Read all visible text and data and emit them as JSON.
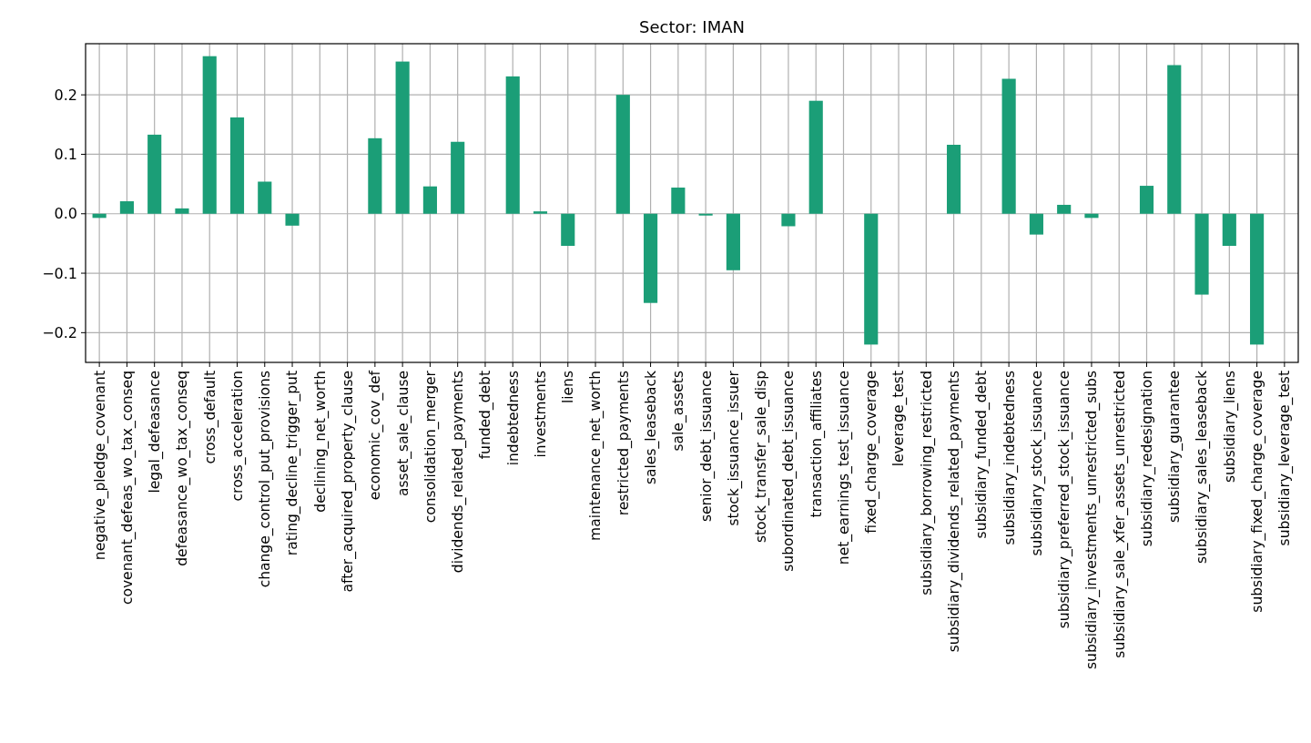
{
  "chart_data": {
    "type": "bar",
    "title": "Sector: IMAN",
    "categories": [
      "negative_pledge_covenant",
      "covenant_defeas_wo_tax_conseq",
      "legal_defeasance",
      "defeasance_wo_tax_conseq",
      "cross_default",
      "cross_acceleration",
      "change_control_put_provisions",
      "rating_decline_trigger_put",
      "declining_net_worth",
      "after_acquired_property_clause",
      "economic_cov_def",
      "asset_sale_clause",
      "consolidation_merger",
      "dividends_related_payments",
      "funded_debt",
      "indebtedness",
      "investments",
      "liens",
      "maintenance_net_worth",
      "restricted_payments",
      "sales_leaseback",
      "sale_assets",
      "senior_debt_issuance",
      "stock_issuance_issuer",
      "stock_transfer_sale_disp",
      "subordinated_debt_issuance",
      "transaction_affiliates",
      "net_earnings_test_issuance",
      "fixed_charge_coverage",
      "leverage_test",
      "subsidiary_borrowing_restricted",
      "subsidiary_dividends_related_payments",
      "subsidiary_funded_debt",
      "subsidiary_indebtedness",
      "subsidiary_stock_issuance",
      "subsidiary_preferred_stock_issuance",
      "subsidiary_investments_unrestricted_subs",
      "subsidiary_sale_xfer_assets_unrestricted",
      "subsidiary_redesignation",
      "subsidiary_guarantee",
      "subsidiary_sales_leaseback",
      "subsidiary_liens",
      "subsidiary_fixed_charge_coverage",
      "subsidiary_leverage_test"
    ],
    "values": [
      -0.007,
      0.021,
      0.133,
      0.009,
      0.265,
      0.162,
      0.054,
      -0.02,
      0,
      0,
      0.127,
      0.256,
      0.046,
      0.121,
      0,
      0.231,
      0.004,
      -0.054,
      0,
      0.2,
      -0.15,
      0.044,
      -0.003,
      -0.095,
      0,
      -0.021,
      0.19,
      0,
      -0.22,
      0,
      0,
      0.116,
      0,
      0.227,
      -0.035,
      0.015,
      -0.007,
      0,
      0.047,
      0.25,
      -0.136,
      -0.054,
      -0.22,
      0
    ],
    "color": "#1b9e77",
    "ylim": [
      -0.25,
      0.286
    ],
    "yticks": [
      {
        "value": -0.2,
        "label": "−0.2"
      },
      {
        "value": -0.1,
        "label": "−0.1"
      },
      {
        "value": 0,
        "label": "0.0"
      },
      0.1,
      0.2
    ],
    "grid": true
  }
}
